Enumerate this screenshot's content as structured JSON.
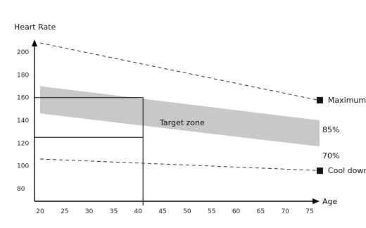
{
  "chart_data": {
    "type": "line",
    "ylabel": "Heart Rate",
    "xlabel": "Age",
    "xlim": [
      20,
      78
    ],
    "ylim": [
      75,
      213
    ],
    "x_ticks": [
      20,
      25,
      30,
      35,
      40,
      45,
      50,
      55,
      60,
      65,
      70,
      75
    ],
    "y_ticks": [
      80,
      100,
      120,
      140,
      160,
      180,
      200
    ],
    "series": [
      {
        "name": "Maximum",
        "style": "dashed",
        "x": [
          20,
          77
        ],
        "y": [
          208,
          158
        ]
      },
      {
        "name": "Cool down",
        "style": "dashed",
        "x": [
          20,
          77
        ],
        "y": [
          106,
          96
        ]
      }
    ],
    "band": {
      "label": "Target zone",
      "x": [
        20,
        77
      ],
      "upper": [
        170,
        140
      ],
      "lower": [
        146,
        117
      ],
      "upper_label": "85%",
      "lower_label": "70%",
      "color": "#c8c8c8"
    },
    "reference_lines": {
      "age": 41,
      "upper_hr": 160,
      "lower_hr": 125
    },
    "colors": {
      "line": "#333333",
      "marker": "#111111",
      "axis": "#000000"
    }
  }
}
